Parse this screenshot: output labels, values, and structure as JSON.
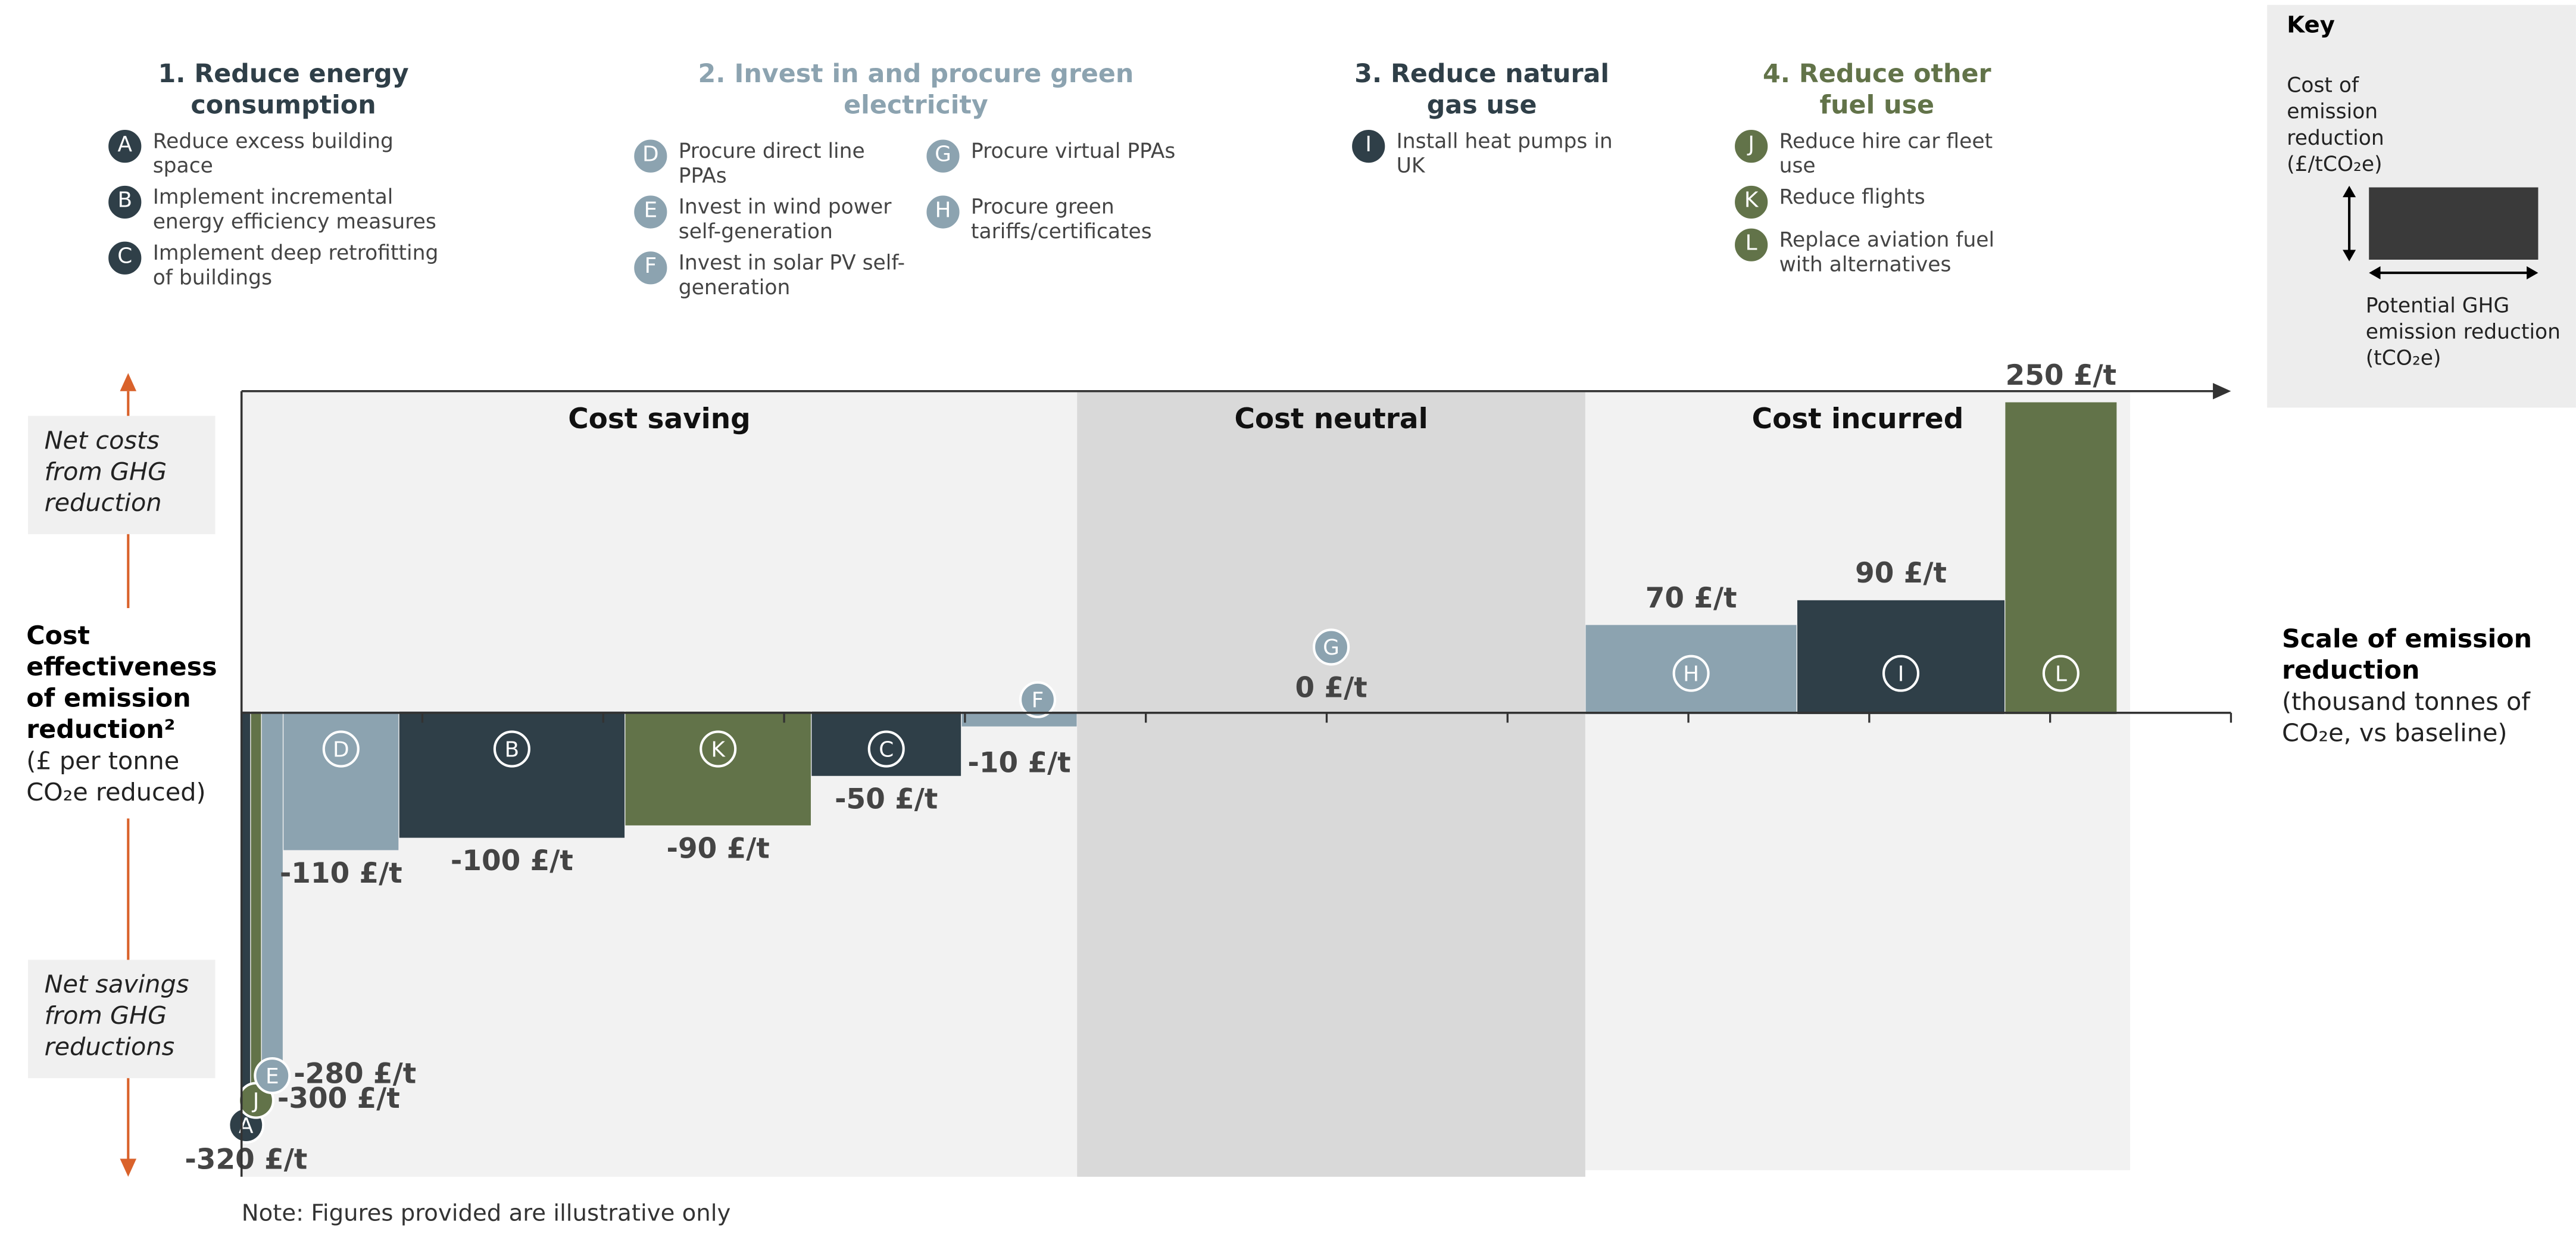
{
  "chart_data": {
    "type": "bar",
    "regions": [
      "Cost saving",
      "Cost neutral",
      "Cost incurred"
    ],
    "categories": [
      "A",
      "J",
      "E",
      "D",
      "B",
      "K",
      "C",
      "F",
      "G",
      "H",
      "I",
      "L"
    ],
    "values": [
      -320,
      -300,
      -280,
      -110,
      -100,
      -90,
      -50,
      -10,
      0,
      70,
      90,
      250
    ],
    "value_labels": [
      "-320 £/t",
      "-300 £/t",
      "-280 £/t",
      "-110 £/t",
      "-100 £/t",
      "-90 £/t",
      "-50 £/t",
      "-10 £/t",
      "0 £/t",
      "70 £/t",
      "90 £/t",
      "250 £/t"
    ],
    "widths": [
      0.05,
      0.06,
      0.12,
      0.64,
      1.25,
      1.03,
      0.83,
      0.64,
      2.81,
      1.17,
      1.15,
      0.62
    ],
    "colors": [
      "#2f3f48",
      "#627349",
      "#8ca3b0",
      "#8ca3b0",
      "#2f3f48",
      "#627349",
      "#2f3f48",
      "#8ca3b0",
      "#8ca3b0",
      "#8ca3b0",
      "#2f3f48",
      "#627349"
    ],
    "xlim": [
      0,
      11
    ],
    "xticks": [
      0,
      1,
      2,
      3,
      4,
      5,
      6,
      7,
      8,
      9,
      10,
      11
    ],
    "ylim": [
      -375,
      260
    ],
    "x_label": "Scale of emission reduction",
    "x_label_note": "(thousand tonnes of CO₂e, vs baseline)",
    "y_label": "Cost effectiveness of emission reduction²",
    "y_label_note": "(£ per tonne CO₂e reduced)",
    "y_positive_label": "Net costs from GHG reduction",
    "y_negative_label": "Net savings from GHG reductions",
    "note": "Note: Figures provided are illustrative only"
  },
  "legend": {
    "groups": [
      {
        "title": "1. Reduce energy consumption",
        "color": "#2f3f48",
        "items": [
          {
            "letter": "A",
            "text": "Reduce excess building space"
          },
          {
            "letter": "B",
            "text": "Implement incremental energy efficiency measures"
          },
          {
            "letter": "C",
            "text": "Implement deep retrofitting of buildings"
          }
        ]
      },
      {
        "title": "2. Invest in and procure green electricity",
        "color": "#8ca3b0",
        "items": [
          {
            "letter": "D",
            "text": "Procure direct line PPAs"
          },
          {
            "letter": "E",
            "text": "Invest in wind power self-generation"
          },
          {
            "letter": "F",
            "text": "Invest in solar PV self-generation"
          },
          {
            "letter": "G",
            "text": "Procure virtual PPAs"
          },
          {
            "letter": "H",
            "text": "Procure green tariffs/certificates"
          }
        ]
      },
      {
        "title": "3. Reduce natural gas use",
        "color": "#2f3f48",
        "items": [
          {
            "letter": "I",
            "text": "Install heat pumps in UK"
          }
        ]
      },
      {
        "title": "4. Reduce other fuel use",
        "color": "#627349",
        "items": [
          {
            "letter": "J",
            "text": "Reduce hire car fleet use"
          },
          {
            "letter": "K",
            "text": "Reduce flights"
          },
          {
            "letter": "L",
            "text": "Replace aviation fuel with alternatives"
          }
        ]
      }
    ]
  },
  "key": {
    "title": "Key",
    "y_text": "Cost of emission reduction (£/tCO₂e)",
    "x_text": "Potential GHG emission reduction (tCO₂e)"
  }
}
